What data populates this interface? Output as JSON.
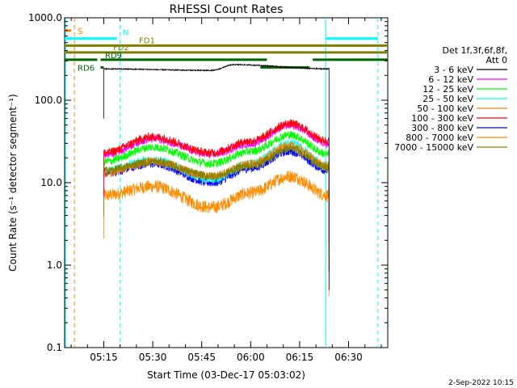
{
  "chart_data": {
    "type": "line",
    "title": "RHESSI Count Rates",
    "xlabel": "Start Time (03-Dec-17 05:03:02)",
    "ylabel": "Count Rate (s⁻¹ detector segment⁻¹)",
    "y_scale": "log",
    "ylim": [
      0.1,
      1000
    ],
    "y_ticks": [
      "1000.0",
      "100.0",
      "10.0",
      "1.0",
      "0.1"
    ],
    "xlim": [
      "05:03",
      "06:42"
    ],
    "x_ticks": [
      "05:15",
      "05:30",
      "05:45",
      "06:00",
      "06:15",
      "06:30"
    ],
    "legend_title": "Det 1f,3f,6f,8f,",
    "legend_subtitle": "Att 0",
    "legend_position": "right",
    "series": [
      {
        "name": "3 - 6 keV",
        "color": "#000000",
        "start": "05:15",
        "end": "06:24",
        "plateau": 240,
        "points": [
          [
            "05:15",
            240
          ],
          [
            "05:48",
            230
          ],
          [
            "05:55",
            270
          ],
          [
            "06:24",
            240
          ]
        ]
      },
      {
        "name": "6 - 12 keV",
        "color": "#ff00ff",
        "start": "05:15",
        "end": "06:24",
        "points": [
          [
            "05:15",
            22
          ],
          [
            "05:30",
            34
          ],
          [
            "05:48",
            22
          ],
          [
            "06:00",
            30
          ],
          [
            "06:12",
            50
          ],
          [
            "06:24",
            30
          ]
        ]
      },
      {
        "name": "12 - 25 keV",
        "color": "#00ff00",
        "start": "05:15",
        "end": "06:24",
        "points": [
          [
            "05:15",
            18
          ],
          [
            "05:30",
            27
          ],
          [
            "05:48",
            17
          ],
          [
            "06:00",
            24
          ],
          [
            "06:12",
            38
          ],
          [
            "06:24",
            22
          ]
        ]
      },
      {
        "name": "25 - 50 keV",
        "color": "#00ffff",
        "start": "05:15",
        "end": "06:24",
        "points": [
          [
            "05:15",
            14
          ],
          [
            "05:30",
            19
          ],
          [
            "05:48",
            11
          ],
          [
            "06:00",
            17
          ],
          [
            "06:12",
            30
          ],
          [
            "06:24",
            16
          ]
        ]
      },
      {
        "name": "50 - 100 keV",
        "color": "#ff8000",
        "start": "05:15",
        "end": "06:24",
        "points": [
          [
            "05:15",
            13
          ],
          [
            "05:30",
            18
          ],
          [
            "05:48",
            12
          ],
          [
            "06:00",
            17
          ],
          [
            "06:12",
            28
          ],
          [
            "06:24",
            16
          ]
        ]
      },
      {
        "name": "100 - 300 keV",
        "color": "#ff0000",
        "start": "05:15",
        "end": "06:24",
        "points": [
          [
            "05:15",
            23
          ],
          [
            "05:30",
            36
          ],
          [
            "05:48",
            23
          ],
          [
            "06:00",
            32
          ],
          [
            "06:12",
            52
          ],
          [
            "06:24",
            32
          ]
        ]
      },
      {
        "name": "300 - 800 keV",
        "color": "#0000ff",
        "start": "05:15",
        "end": "06:24",
        "points": [
          [
            "05:15",
            13
          ],
          [
            "05:30",
            17
          ],
          [
            "05:48",
            10
          ],
          [
            "06:00",
            15
          ],
          [
            "06:12",
            24
          ],
          [
            "06:24",
            14
          ]
        ]
      },
      {
        "name": "800 - 7000 keV",
        "color": "#ff8c00",
        "start": "05:15",
        "end": "06:24",
        "points": [
          [
            "05:15",
            7
          ],
          [
            "05:30",
            9
          ],
          [
            "05:48",
            5
          ],
          [
            "06:00",
            7.5
          ],
          [
            "06:12",
            12
          ],
          [
            "06:24",
            7
          ]
        ]
      },
      {
        "name": "7000 - 15000 keV",
        "color": "#808000",
        "start": "05:15",
        "end": "06:24",
        "points": [
          [
            "05:15",
            14
          ],
          [
            "05:30",
            18
          ],
          [
            "05:48",
            12
          ],
          [
            "06:00",
            16
          ],
          [
            "06:12",
            26
          ],
          [
            "06:24",
            15
          ]
        ]
      }
    ],
    "flags": [
      {
        "label": "S",
        "color": "#ff8000",
        "value": 700,
        "segments": [
          [
            "05:03",
            "05:05"
          ]
        ]
      },
      {
        "label": "N",
        "color": "#00ffff",
        "value": 560,
        "segments": [
          [
            "05:03",
            "05:19"
          ],
          [
            "06:23",
            "06:39"
          ]
        ]
      },
      {
        "label": "FD1",
        "color": "#808000",
        "value": 460,
        "segments": [
          [
            "05:03",
            "06:42"
          ]
        ]
      },
      {
        "label": "FD2",
        "color": "#808000",
        "value": 380,
        "segments": [
          [
            "05:03",
            "06:42"
          ]
        ]
      },
      {
        "label": "RD6",
        "color": "#006400",
        "value": 250,
        "segments": [
          [
            "05:14",
            "05:15"
          ],
          [
            "06:03",
            "06:18"
          ]
        ]
      },
      {
        "label": "RD9",
        "color": "#006400",
        "value": 310,
        "segments": [
          [
            "05:03",
            "05:13"
          ],
          [
            "05:14",
            "06:05"
          ],
          [
            "06:19",
            "06:42"
          ]
        ]
      }
    ],
    "vlines": [
      {
        "t": "05:03",
        "color": "#00ffff",
        "style": "solid"
      },
      {
        "t": "05:06",
        "color": "#ff8000",
        "style": "dashed"
      },
      {
        "t": "05:20",
        "color": "#00ffff",
        "style": "dashed"
      },
      {
        "t": "06:23",
        "color": "#00ffff",
        "style": "solid"
      },
      {
        "t": "06:39",
        "color": "#00ffff",
        "style": "dashed"
      }
    ],
    "footer_date": "2-Sep-2022 10:15"
  }
}
